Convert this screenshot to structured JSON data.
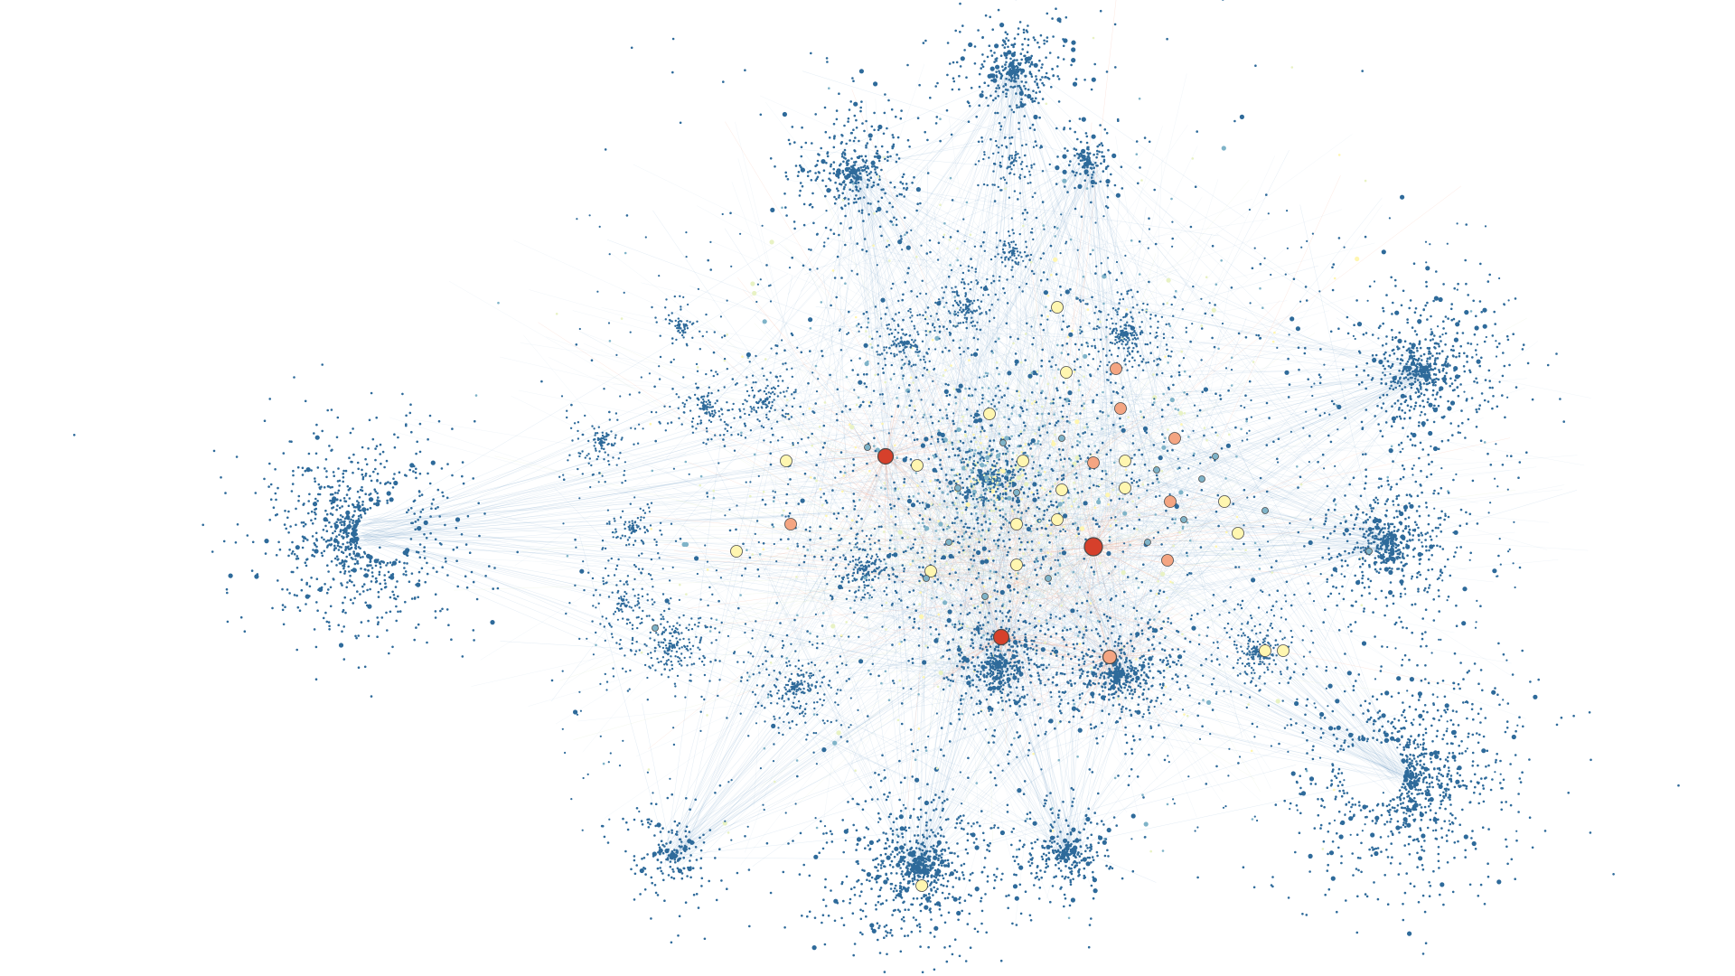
{
  "canvas": {
    "background": "#ffffff"
  },
  "palette": {
    "node_cold": "#2e6a9a",
    "node_cool": "#7fb3c8",
    "node_neutral": "#e8f2c4",
    "node_pale": "#fff6b0",
    "node_warm": "#f4a582",
    "node_hot": "#d6402b",
    "node_stroke": "#4a4a4a",
    "edge_cold": "#5b93bd",
    "edge_warm": "#f08a6a",
    "edge_neutral": "#c9dca8"
  },
  "clusters": [
    {
      "name": "cluster-west",
      "tone": "cold",
      "density": "very-high"
    },
    {
      "name": "cluster-north-top",
      "tone": "cold",
      "density": "medium"
    },
    {
      "name": "cluster-north-left",
      "tone": "cold",
      "density": "medium"
    },
    {
      "name": "cluster-north-right",
      "tone": "cold",
      "density": "low"
    },
    {
      "name": "cluster-center-core",
      "tone": "mixed",
      "density": "very-high"
    },
    {
      "name": "cluster-east-upper",
      "tone": "cold",
      "density": "high"
    },
    {
      "name": "cluster-east-middle",
      "tone": "cold",
      "density": "high"
    },
    {
      "name": "cluster-east-lower",
      "tone": "cold",
      "density": "very-high"
    },
    {
      "name": "cluster-south-center",
      "tone": "cold",
      "density": "high"
    },
    {
      "name": "cluster-south-small",
      "tone": "cold",
      "density": "medium"
    },
    {
      "name": "cluster-south-west",
      "tone": "cold",
      "density": "low"
    },
    {
      "name": "cluster-south-core-left",
      "tone": "cold",
      "density": "high"
    },
    {
      "name": "cluster-south-core-right",
      "tone": "cold",
      "density": "high"
    }
  ],
  "hubs": [
    {
      "name": "hub-primary",
      "tone": "hot"
    },
    {
      "name": "hub-secondary",
      "tone": "hot"
    },
    {
      "name": "hub-south-left",
      "tone": "hot"
    },
    {
      "name": "hub-south-right",
      "tone": "warm"
    }
  ]
}
